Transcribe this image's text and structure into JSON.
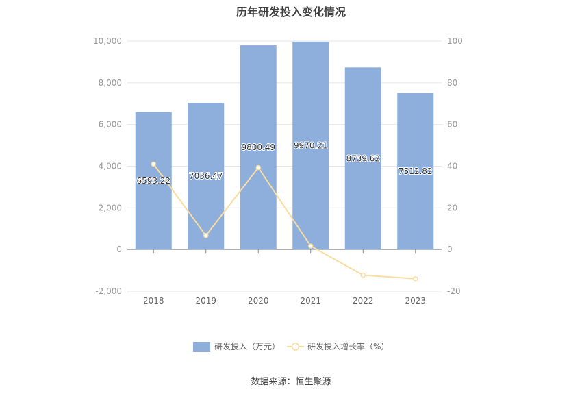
{
  "chart_data": {
    "type": "bar",
    "title": "历年研发投入变化情况",
    "source": "数据来源：恒生聚源",
    "categories": [
      "2018",
      "2019",
      "2020",
      "2021",
      "2022",
      "2023"
    ],
    "series": [
      {
        "name": "研发投入（万元）",
        "type": "bar",
        "axis": "left",
        "color": "#8eaedb",
        "values": [
          6593.22,
          7036.47,
          9800.49,
          9970.21,
          8739.62,
          7512.82
        ],
        "labels": [
          "6593.22",
          "7036.47",
          "9800.49",
          "9970.21",
          "8739.62",
          "7512.82"
        ]
      },
      {
        "name": "研发投入增长率（%）",
        "type": "line",
        "axis": "right",
        "color": "#f8dca0",
        "values": [
          41.0,
          6.7,
          39.3,
          1.7,
          -12.3,
          -14.0
        ]
      }
    ],
    "y_left": {
      "ylim": [
        -2000,
        10000
      ],
      "ticks": [
        "-2,000",
        "0",
        "2,000",
        "4,000",
        "6,000",
        "8,000",
        "10,000"
      ],
      "tick_values": [
        -2000,
        0,
        2000,
        4000,
        6000,
        8000,
        10000
      ]
    },
    "y_right": {
      "ylim": [
        -20,
        100
      ],
      "ticks": [
        "-20",
        "0",
        "20",
        "40",
        "60",
        "80",
        "100"
      ],
      "tick_values": [
        -20,
        0,
        20,
        40,
        60,
        80,
        100
      ]
    },
    "grid": true,
    "legend": "bottom"
  }
}
